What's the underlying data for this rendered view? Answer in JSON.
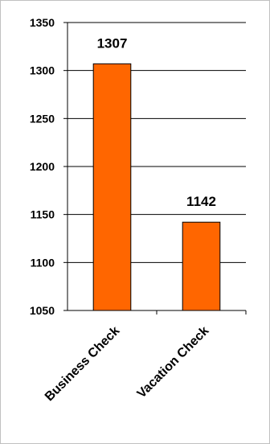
{
  "chart_data": {
    "type": "bar",
    "title": "",
    "xlabel": "",
    "ylabel": "",
    "categories": [
      "Business Check",
      "Vacation Check"
    ],
    "values": [
      1307,
      1142
    ],
    "data_labels": [
      "1307",
      "1142"
    ],
    "ylim": [
      1050,
      1350
    ],
    "yticks": [
      1050,
      1100,
      1150,
      1200,
      1250,
      1300,
      1350
    ],
    "grid": true,
    "legend": "none",
    "colors": {
      "bar_fill": "#ff6600",
      "bar_stroke": "#000000",
      "grid": "#000000",
      "frame": "#c0c0c0"
    }
  }
}
